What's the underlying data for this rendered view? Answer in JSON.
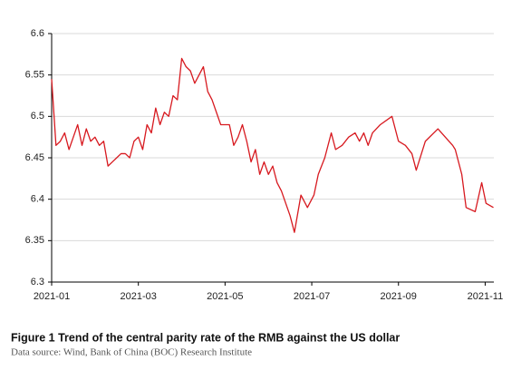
{
  "chart_data": {
    "type": "line",
    "title": "Figure 1 Trend of the central parity rate of the RMB against the US dollar",
    "source": "Data source: Wind, Bank of China (BOC) Research Institute",
    "x": [
      0,
      0.1,
      0.2,
      0.3,
      0.4,
      0.5,
      0.6,
      0.7,
      0.8,
      0.9,
      1.0,
      1.1,
      1.2,
      1.3,
      1.4,
      1.6,
      1.7,
      1.8,
      1.9,
      2.0,
      2.1,
      2.2,
      2.3,
      2.4,
      2.5,
      2.6,
      2.7,
      2.8,
      2.9,
      3.0,
      3.1,
      3.2,
      3.3,
      3.4,
      3.5,
      3.6,
      3.7,
      3.8,
      3.9,
      4.1,
      4.2,
      4.3,
      4.4,
      4.5,
      4.6,
      4.7,
      4.8,
      4.9,
      5.0,
      5.1,
      5.2,
      5.3,
      5.5,
      5.6,
      5.75,
      5.85,
      5.9,
      6.05,
      6.15,
      6.3,
      6.45,
      6.55,
      6.7,
      6.85,
      7.0,
      7.1,
      7.2,
      7.3,
      7.4,
      7.58,
      7.85,
      8.0,
      8.16,
      8.31,
      8.41,
      8.62,
      8.91,
      9.25,
      9.31,
      9.46,
      9.56,
      9.77,
      9.92,
      10.02,
      10.19
    ],
    "values": [
      6.545,
      6.465,
      6.47,
      6.48,
      6.46,
      6.475,
      6.49,
      6.465,
      6.485,
      6.47,
      6.475,
      6.465,
      6.47,
      6.44,
      6.445,
      6.455,
      6.455,
      6.45,
      6.47,
      6.475,
      6.46,
      6.49,
      6.48,
      6.51,
      6.49,
      6.505,
      6.5,
      6.525,
      6.52,
      6.57,
      6.56,
      6.555,
      6.54,
      6.55,
      6.56,
      6.53,
      6.52,
      6.505,
      6.49,
      6.49,
      6.465,
      6.475,
      6.49,
      6.47,
      6.445,
      6.46,
      6.43,
      6.445,
      6.43,
      6.44,
      6.42,
      6.41,
      6.38,
      6.36,
      6.405,
      6.395,
      6.39,
      6.405,
      6.43,
      6.45,
      6.48,
      6.46,
      6.465,
      6.475,
      6.48,
      6.47,
      6.48,
      6.465,
      6.48,
      6.49,
      6.5,
      6.47,
      6.465,
      6.455,
      6.435,
      6.47,
      6.485,
      6.465,
      6.46,
      6.43,
      6.39,
      6.385,
      6.42,
      6.395,
      6.39
    ],
    "color": "#d7191f",
    "xlim": [
      0,
      10.2
    ],
    "xticks": [
      {
        "value": 0,
        "label": "2021-01"
      },
      {
        "value": 2,
        "label": "2021-03"
      },
      {
        "value": 4,
        "label": "2021-05"
      },
      {
        "value": 6,
        "label": "2021-07"
      },
      {
        "value": 8,
        "label": "2021-09"
      },
      {
        "value": 10,
        "label": "2021-11"
      }
    ],
    "ylim": [
      6.3,
      6.6
    ],
    "yticks": [
      6.3,
      6.35,
      6.4,
      6.45,
      6.5,
      6.55,
      6.6
    ],
    "grid": true
  }
}
